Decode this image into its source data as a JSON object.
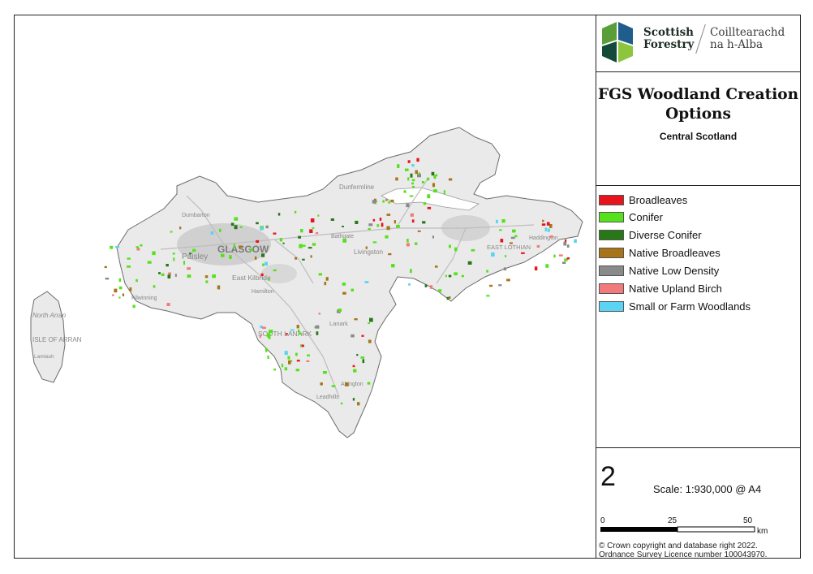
{
  "logo": {
    "line1": "Scottish",
    "line2": "Forestry",
    "gaelic1": "Coilltearachd",
    "gaelic2": "na h-Alba",
    "colors": [
      "#5a9e3a",
      "#1f5d8c",
      "#144a3a",
      "#8cc63f"
    ]
  },
  "title": "FGS Woodland Creation Options",
  "subtitle": "Central Scotland",
  "legend": [
    {
      "label": "Broadleaves",
      "color": "#e8141c"
    },
    {
      "label": "Conifer",
      "color": "#54e21a"
    },
    {
      "label": "Diverse Conifer",
      "color": "#287818"
    },
    {
      "label": "Native Broadleaves",
      "color": "#a8741a"
    },
    {
      "label": "Native Low Density",
      "color": "#8a8a8a"
    },
    {
      "label": "Native Upland Birch",
      "color": "#f27a7a"
    },
    {
      "label": "Small or Farm Woodlands",
      "color": "#5ad4f2"
    }
  ],
  "map_number": "2",
  "scale": "Scale: 1:930,000 @ A4",
  "scalebar": {
    "ticks": [
      "0",
      "25",
      "50"
    ],
    "unit": "km"
  },
  "copyright_line1": "© Crown copyright and database right 2022.",
  "copyright_line2": "Ordnance Survey Licence number 100043970.",
  "map_labels": {
    "glasgow": "GLASGOW",
    "paisley": "Paisley",
    "east_kilbride": "East Kilbride",
    "north_arran": "North Arran",
    "isle_of_arran": "ISLE OF ARRAN",
    "south_lanark": "SOUTH LANARK",
    "livingston": "Livingston",
    "dunfermline": "Dunfermline",
    "east_lothian": "EAST LOTHIAN",
    "lanark": "Lanark",
    "hamilton": "Hamilton",
    "lamlash": "Lamlash",
    "kilwinning": "Kilwinning",
    "dumbarton": "Dumbarton",
    "bathgate": "Bathgate",
    "abington": "Abington",
    "leadhills": "Leadhills",
    "haddington": "Haddington"
  }
}
